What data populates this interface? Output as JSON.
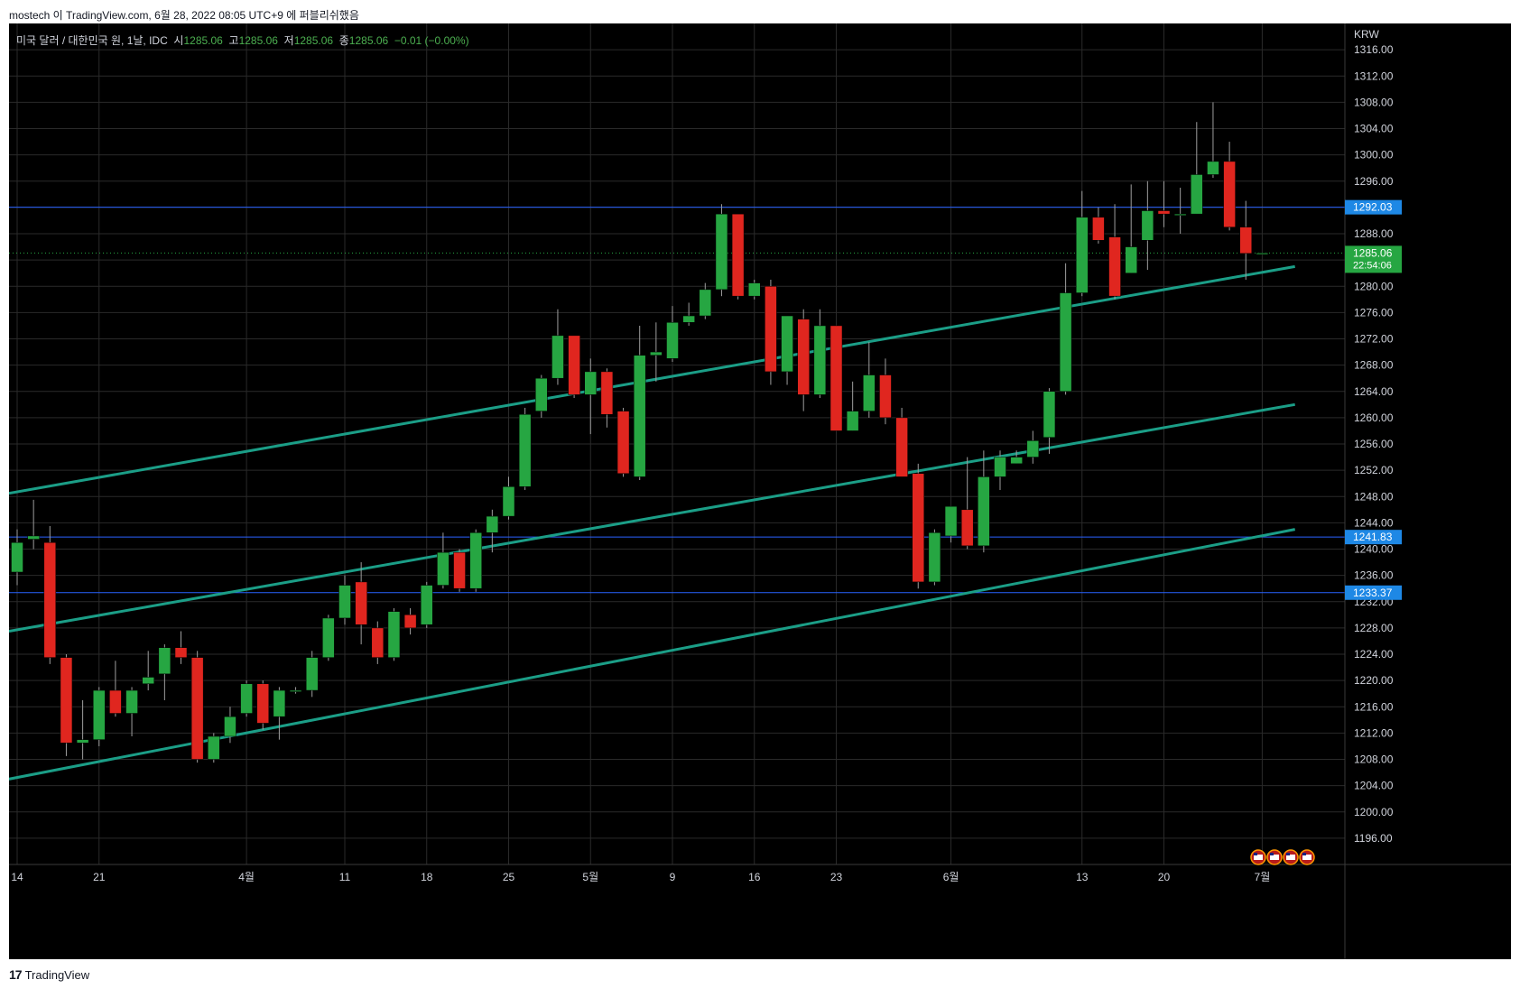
{
  "header": {
    "publisher_line": "mostech 이 TradingView.com, 6월 28, 2022 08:05 UTC+9 에 퍼블리쉬했음"
  },
  "legend": {
    "symbol": "미국 달러 / 대한민국 원, 1날, IDC",
    "open_label": "시",
    "open": "1285.06",
    "high_label": "고",
    "high": "1285.06",
    "low_label": "저",
    "low": "1285.06",
    "close_label": "종",
    "close": "1285.06",
    "change": "−0.01 (−0.00%)"
  },
  "footer": {
    "logo": "17",
    "brand": "TradingView"
  },
  "colors": {
    "background": "#000000",
    "grid": "#2a2a2a",
    "up": "#26a642",
    "down": "#e0261f",
    "wick": "#9e9e9e",
    "channel": "#1b9e87",
    "hline": "#2962ff",
    "price_tag": "#26a642",
    "hline_tag": "#1e88e5",
    "axis_text": "#d1d4dc"
  },
  "chart_data": {
    "type": "candlestick",
    "currency": "KRW",
    "ylim": [
      1192,
      1320
    ],
    "y_ticks": [
      1196,
      1200,
      1204,
      1208,
      1212,
      1216,
      1220,
      1224,
      1228,
      1232,
      1236,
      1240,
      1244,
      1248,
      1252,
      1256,
      1260,
      1264,
      1268,
      1272,
      1276,
      1280,
      1284,
      1288,
      1292,
      1296,
      1300,
      1304,
      1308,
      1312,
      1316
    ],
    "x_labels": [
      {
        "bar": 0,
        "label": "14"
      },
      {
        "bar": 5,
        "label": "21"
      },
      {
        "bar": 14,
        "label": "4월"
      },
      {
        "bar": 20,
        "label": "11"
      },
      {
        "bar": 25,
        "label": "18"
      },
      {
        "bar": 30,
        "label": "25"
      },
      {
        "bar": 35,
        "label": "5월"
      },
      {
        "bar": 40,
        "label": "9"
      },
      {
        "bar": 45,
        "label": "16"
      },
      {
        "bar": 50,
        "label": "23"
      },
      {
        "bar": 57,
        "label": "6월"
      },
      {
        "bar": 65,
        "label": "13"
      },
      {
        "bar": 70,
        "label": "20"
      },
      {
        "bar": 76,
        "label": "7월"
      }
    ],
    "candles": [
      {
        "o": 1236.5,
        "h": 1243.0,
        "l": 1234.5,
        "c": 1241.0
      },
      {
        "o": 1241.5,
        "h": 1247.5,
        "l": 1240.0,
        "c": 1242.0
      },
      {
        "o": 1241.0,
        "h": 1243.5,
        "l": 1222.5,
        "c": 1223.5
      },
      {
        "o": 1223.5,
        "h": 1224.0,
        "l": 1208.5,
        "c": 1210.5
      },
      {
        "o": 1210.5,
        "h": 1217.0,
        "l": 1208.0,
        "c": 1211.0
      },
      {
        "o": 1211.0,
        "h": 1219.0,
        "l": 1210.0,
        "c": 1218.5
      },
      {
        "o": 1218.5,
        "h": 1223.0,
        "l": 1214.5,
        "c": 1215.0
      },
      {
        "o": 1215.0,
        "h": 1219.0,
        "l": 1211.5,
        "c": 1218.5
      },
      {
        "o": 1219.5,
        "h": 1224.5,
        "l": 1218.5,
        "c": 1220.5
      },
      {
        "o": 1221.0,
        "h": 1225.5,
        "l": 1217.0,
        "c": 1225.0
      },
      {
        "o": 1225.0,
        "h": 1227.5,
        "l": 1222.5,
        "c": 1223.5
      },
      {
        "o": 1223.5,
        "h": 1224.5,
        "l": 1207.5,
        "c": 1208.0
      },
      {
        "o": 1208.0,
        "h": 1212.0,
        "l": 1207.5,
        "c": 1211.5
      },
      {
        "o": 1211.5,
        "h": 1216.0,
        "l": 1210.5,
        "c": 1214.5
      },
      {
        "o": 1215.0,
        "h": 1220.0,
        "l": 1214.5,
        "c": 1219.5
      },
      {
        "o": 1219.5,
        "h": 1220.0,
        "l": 1212.5,
        "c": 1213.5
      },
      {
        "o": 1214.5,
        "h": 1219.0,
        "l": 1211.0,
        "c": 1218.5
      },
      {
        "o": 1218.5,
        "h": 1219.0,
        "l": 1218.0,
        "c": 1218.5
      },
      {
        "o": 1218.5,
        "h": 1224.5,
        "l": 1217.5,
        "c": 1223.5
      },
      {
        "o": 1223.5,
        "h": 1230.0,
        "l": 1223.0,
        "c": 1229.5
      },
      {
        "o": 1229.5,
        "h": 1236.0,
        "l": 1228.5,
        "c": 1234.5
      },
      {
        "o": 1235.0,
        "h": 1238.0,
        "l": 1225.5,
        "c": 1228.5
      },
      {
        "o": 1228.0,
        "h": 1229.0,
        "l": 1222.5,
        "c": 1223.5
      },
      {
        "o": 1223.5,
        "h": 1231.0,
        "l": 1223.0,
        "c": 1230.5
      },
      {
        "o": 1230.0,
        "h": 1231.0,
        "l": 1227.0,
        "c": 1228.0
      },
      {
        "o": 1228.5,
        "h": 1235.0,
        "l": 1228.0,
        "c": 1234.5
      },
      {
        "o": 1234.5,
        "h": 1242.5,
        "l": 1234.0,
        "c": 1239.5
      },
      {
        "o": 1239.5,
        "h": 1240.0,
        "l": 1233.5,
        "c": 1234.0
      },
      {
        "o": 1234.0,
        "h": 1243.0,
        "l": 1233.5,
        "c": 1242.5
      },
      {
        "o": 1242.5,
        "h": 1246.0,
        "l": 1239.5,
        "c": 1245.0
      },
      {
        "o": 1245.0,
        "h": 1251.0,
        "l": 1244.5,
        "c": 1249.5
      },
      {
        "o": 1249.5,
        "h": 1261.5,
        "l": 1249.0,
        "c": 1260.5
      },
      {
        "o": 1261.0,
        "h": 1266.5,
        "l": 1260.0,
        "c": 1266.0
      },
      {
        "o": 1266.0,
        "h": 1276.5,
        "l": 1265.0,
        "c": 1272.5
      },
      {
        "o": 1272.5,
        "h": 1272.0,
        "l": 1263.0,
        "c": 1263.5
      },
      {
        "o": 1263.5,
        "h": 1269.0,
        "l": 1257.5,
        "c": 1267.0
      },
      {
        "o": 1267.0,
        "h": 1267.5,
        "l": 1258.5,
        "c": 1260.5
      },
      {
        "o": 1261.0,
        "h": 1261.5,
        "l": 1251.0,
        "c": 1251.5
      },
      {
        "o": 1251.0,
        "h": 1274.0,
        "l": 1250.5,
        "c": 1269.5
      },
      {
        "o": 1269.5,
        "h": 1274.5,
        "l": 1265.5,
        "c": 1270.0
      },
      {
        "o": 1269.0,
        "h": 1277.0,
        "l": 1268.5,
        "c": 1274.5
      },
      {
        "o": 1274.5,
        "h": 1277.5,
        "l": 1274.0,
        "c": 1275.5
      },
      {
        "o": 1275.5,
        "h": 1280.5,
        "l": 1275.0,
        "c": 1279.5
      },
      {
        "o": 1279.5,
        "h": 1292.5,
        "l": 1278.5,
        "c": 1291.0
      },
      {
        "o": 1291.0,
        "h": 1290.0,
        "l": 1278.0,
        "c": 1278.5
      },
      {
        "o": 1278.5,
        "h": 1281.0,
        "l": 1278.0,
        "c": 1280.5
      },
      {
        "o": 1280.0,
        "h": 1281.0,
        "l": 1265.0,
        "c": 1267.0
      },
      {
        "o": 1267.0,
        "h": 1275.5,
        "l": 1265.0,
        "c": 1275.5
      },
      {
        "o": 1275.0,
        "h": 1276.5,
        "l": 1261.0,
        "c": 1263.5
      },
      {
        "o": 1263.5,
        "h": 1276.5,
        "l": 1263.0,
        "c": 1274.0
      },
      {
        "o": 1274.0,
        "h": 1274.0,
        "l": 1258.0,
        "c": 1258.0
      },
      {
        "o": 1258.0,
        "h": 1265.5,
        "l": 1258.0,
        "c": 1261.0
      },
      {
        "o": 1261.0,
        "h": 1271.5,
        "l": 1260.0,
        "c": 1266.5
      },
      {
        "o": 1266.5,
        "h": 1269.0,
        "l": 1259.0,
        "c": 1260.0
      },
      {
        "o": 1260.0,
        "h": 1261.5,
        "l": 1251.0,
        "c": 1251.0
      },
      {
        "o": 1251.5,
        "h": 1253.0,
        "l": 1234.0,
        "c": 1235.0
      },
      {
        "o": 1235.0,
        "h": 1243.0,
        "l": 1234.5,
        "c": 1242.5
      },
      {
        "o": 1242.0,
        "h": 1246.5,
        "l": 1241.0,
        "c": 1246.5
      },
      {
        "o": 1246.0,
        "h": 1254.0,
        "l": 1240.0,
        "c": 1240.5
      },
      {
        "o": 1240.5,
        "h": 1255.0,
        "l": 1239.5,
        "c": 1251.0
      },
      {
        "o": 1251.0,
        "h": 1255.0,
        "l": 1249.0,
        "c": 1254.0
      },
      {
        "o": 1253.0,
        "h": 1255.0,
        "l": 1253.0,
        "c": 1254.0
      },
      {
        "o": 1254.0,
        "h": 1258.0,
        "l": 1253.0,
        "c": 1256.5
      },
      {
        "o": 1257.0,
        "h": 1264.5,
        "l": 1254.5,
        "c": 1264.0
      },
      {
        "o": 1264.0,
        "h": 1283.5,
        "l": 1263.5,
        "c": 1279.0
      },
      {
        "o": 1279.0,
        "h": 1294.5,
        "l": 1278.5,
        "c": 1290.5
      },
      {
        "o": 1290.5,
        "h": 1292.0,
        "l": 1286.5,
        "c": 1287.0
      },
      {
        "o": 1287.5,
        "h": 1292.5,
        "l": 1278.0,
        "c": 1278.5
      },
      {
        "o": 1282.0,
        "h": 1295.5,
        "l": 1282.0,
        "c": 1286.0
      },
      {
        "o": 1287.0,
        "h": 1296.0,
        "l": 1282.5,
        "c": 1291.5
      },
      {
        "o": 1291.5,
        "h": 1296.0,
        "l": 1289.0,
        "c": 1291.0
      },
      {
        "o": 1291.0,
        "h": 1295.0,
        "l": 1288.0,
        "c": 1291.0
      },
      {
        "o": 1291.0,
        "h": 1305.0,
        "l": 1291.0,
        "c": 1297.0
      },
      {
        "o": 1297.0,
        "h": 1308.0,
        "l": 1296.5,
        "c": 1299.0
      },
      {
        "o": 1299.0,
        "h": 1302.0,
        "l": 1288.5,
        "c": 1289.0
      },
      {
        "o": 1289.0,
        "h": 1293.0,
        "l": 1281.0,
        "c": 1285.0
      },
      {
        "o": 1285.06,
        "h": 1285.06,
        "l": 1285.06,
        "c": 1285.06
      }
    ],
    "horizontal_lines": [
      {
        "price": 1292.03,
        "label": "1292.03"
      },
      {
        "price": 1241.83,
        "label": "1241.83"
      },
      {
        "price": 1233.37,
        "label": "1233.37"
      }
    ],
    "current_price": {
      "price": 1285.06,
      "label": "1285.06",
      "countdown": "22:54:06"
    },
    "channel_lines": [
      {
        "x1": -0.5,
        "y1": 1248.5,
        "x2": 78,
        "y2": 1283.0
      },
      {
        "x1": -0.5,
        "y1": 1227.5,
        "x2": 78,
        "y2": 1262.0
      },
      {
        "x1": -0.5,
        "y1": 1205.0,
        "x2": 78,
        "y2": 1243.0
      }
    ]
  }
}
